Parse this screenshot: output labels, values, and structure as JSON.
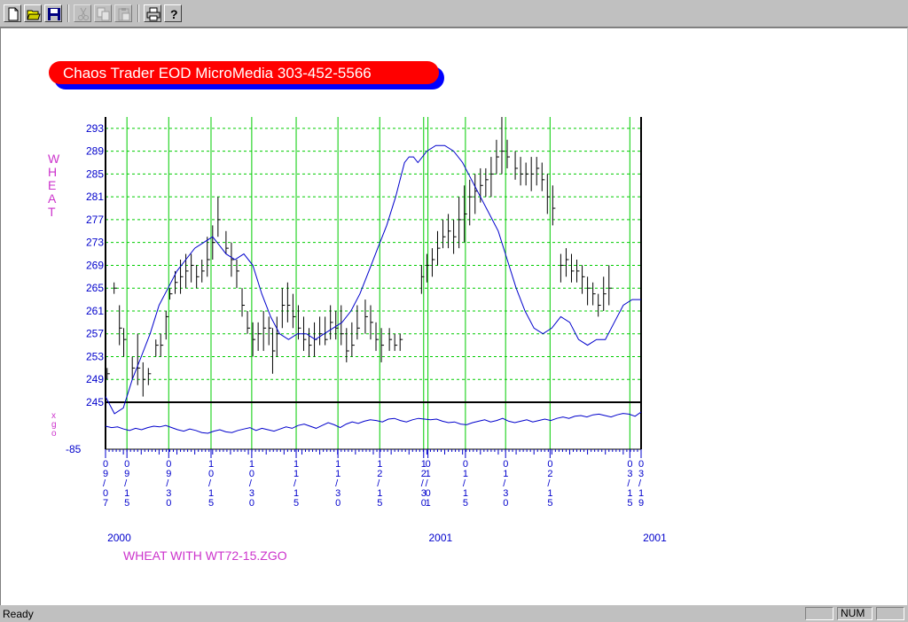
{
  "toolbar": {
    "buttons": [
      {
        "name": "new-button",
        "icon": "new-document-icon",
        "enabled": true
      },
      {
        "name": "open-button",
        "icon": "open-folder-icon",
        "enabled": true
      },
      {
        "name": "save-button",
        "icon": "floppy-disk-icon",
        "enabled": true
      },
      {
        "name": "cut-button",
        "icon": "scissors-icon",
        "enabled": false
      },
      {
        "name": "copy-button",
        "icon": "copy-icon",
        "enabled": false
      },
      {
        "name": "paste-button",
        "icon": "clipboard-icon",
        "enabled": false
      },
      {
        "name": "print-button",
        "icon": "printer-icon",
        "enabled": true
      },
      {
        "name": "help-button",
        "icon": "help-question-icon",
        "enabled": true
      }
    ]
  },
  "banner": {
    "text": "Chaos Trader EOD MicroMedia 303-452-5566",
    "fill": "#ff0000",
    "shadow": "#0000ff"
  },
  "status": {
    "text": "Ready",
    "num": "NUM"
  },
  "chart_data": [
    {
      "type": "ohlc",
      "ylabel": "WHEAT",
      "ylim": [
        245,
        295
      ],
      "yticks": [
        245,
        249,
        253,
        257,
        261,
        265,
        269,
        273,
        277,
        281,
        285,
        289,
        293
      ],
      "xticks": [
        {
          "label": "09/07",
          "pos": 0.0
        },
        {
          "label": "09/15",
          "pos": 0.04
        },
        {
          "label": "09/30",
          "pos": 0.118
        },
        {
          "label": "10/15",
          "pos": 0.197
        },
        {
          "label": "10/30",
          "pos": 0.273
        },
        {
          "label": "11/15",
          "pos": 0.356
        },
        {
          "label": "11/30",
          "pos": 0.434
        },
        {
          "label": "12/15",
          "pos": 0.512
        },
        {
          "label": "12/30",
          "pos": 0.594
        },
        {
          "label": "01/01",
          "pos": 0.602
        },
        {
          "label": "01/15",
          "pos": 0.672
        },
        {
          "label": "01/30",
          "pos": 0.747
        },
        {
          "label": "02/15",
          "pos": 0.83
        },
        {
          "label": "03/15",
          "pos": 0.979
        },
        {
          "label": "03/19",
          "pos": 1.0
        }
      ],
      "year_labels": [
        {
          "label": "2000",
          "pos": 0.02
        },
        {
          "label": "2001",
          "pos": 0.62
        },
        {
          "label": "2001",
          "pos": 1.02
        }
      ],
      "footer": "WHEAT WITH WT72-15.ZGO",
      "grid": true,
      "bar_color": "#000000",
      "line_color": "#0000cc",
      "grid_vertical_color": "#00cc00",
      "grid_horizontal_color": "#00cc00",
      "bars": [
        [
          0.003,
          251,
          249,
          250
        ],
        [
          0.016,
          266,
          264,
          265
        ],
        [
          0.026,
          262,
          255,
          258
        ],
        [
          0.034,
          258,
          253,
          256
        ],
        [
          0.05,
          253,
          249,
          251
        ],
        [
          0.06,
          257,
          248,
          251
        ],
        [
          0.07,
          252,
          246,
          249
        ],
        [
          0.08,
          251,
          248,
          250
        ],
        [
          0.094,
          256,
          253,
          255
        ],
        [
          0.103,
          257,
          253,
          255
        ],
        [
          0.113,
          261,
          256,
          260
        ],
        [
          0.12,
          265,
          263,
          264
        ],
        [
          0.13,
          268,
          264,
          266
        ],
        [
          0.14,
          270,
          264,
          267
        ],
        [
          0.15,
          271,
          265,
          268
        ],
        [
          0.16,
          271,
          266,
          269
        ],
        [
          0.17,
          269,
          265,
          267
        ],
        [
          0.18,
          270,
          266,
          268
        ],
        [
          0.19,
          274,
          267,
          270
        ],
        [
          0.2,
          276,
          270,
          273
        ],
        [
          0.21,
          281,
          274,
          277
        ],
        [
          0.225,
          275,
          271,
          272
        ],
        [
          0.235,
          273,
          267,
          270
        ],
        [
          0.245,
          270,
          265,
          268
        ],
        [
          0.255,
          265,
          260,
          262
        ],
        [
          0.265,
          261,
          257,
          258
        ],
        [
          0.275,
          259,
          253,
          256
        ],
        [
          0.285,
          259,
          254,
          257
        ],
        [
          0.295,
          261,
          254,
          258
        ],
        [
          0.305,
          260,
          255,
          258
        ],
        [
          0.312,
          258,
          250,
          254
        ],
        [
          0.32,
          260,
          253,
          257
        ],
        [
          0.33,
          265,
          258,
          262
        ],
        [
          0.34,
          266,
          259,
          262
        ],
        [
          0.35,
          264,
          258,
          260
        ],
        [
          0.36,
          262,
          256,
          258
        ],
        [
          0.37,
          260,
          254,
          256
        ],
        [
          0.38,
          258,
          253,
          255
        ],
        [
          0.39,
          259,
          253,
          256
        ],
        [
          0.4,
          260,
          255,
          257
        ],
        [
          0.41,
          260,
          255,
          256
        ],
        [
          0.42,
          262,
          256,
          259
        ],
        [
          0.43,
          261,
          256,
          258
        ],
        [
          0.44,
          262,
          255,
          257
        ],
        [
          0.45,
          258,
          252,
          254
        ],
        [
          0.46,
          259,
          253,
          255
        ],
        [
          0.47,
          262,
          256,
          258
        ],
        [
          0.485,
          263,
          257,
          260
        ],
        [
          0.495,
          262,
          256,
          259
        ],
        [
          0.505,
          259,
          254,
          256
        ],
        [
          0.515,
          258,
          252,
          255
        ],
        [
          0.53,
          258,
          254,
          256
        ],
        [
          0.54,
          257,
          254,
          255
        ],
        [
          0.55,
          257,
          254,
          256
        ],
        [
          0.59,
          269,
          264,
          267
        ],
        [
          0.6,
          271,
          266,
          269
        ],
        [
          0.61,
          272,
          267,
          270
        ],
        [
          0.62,
          275,
          269,
          272
        ],
        [
          0.63,
          277,
          272,
          274
        ],
        [
          0.64,
          278,
          272,
          275
        ],
        [
          0.65,
          277,
          271,
          274
        ],
        [
          0.66,
          281,
          272,
          277
        ],
        [
          0.67,
          283,
          273,
          278
        ],
        [
          0.68,
          284,
          276,
          281
        ],
        [
          0.69,
          285,
          278,
          282
        ],
        [
          0.7,
          286,
          280,
          283
        ],
        [
          0.71,
          286,
          281,
          284
        ],
        [
          0.72,
          288,
          281,
          285
        ],
        [
          0.73,
          291,
          285,
          288
        ],
        [
          0.74,
          295,
          285,
          289
        ],
        [
          0.75,
          291,
          286,
          288
        ],
        [
          0.765,
          289,
          284,
          286
        ],
        [
          0.775,
          288,
          283,
          285
        ],
        [
          0.785,
          287,
          283,
          285
        ],
        [
          0.795,
          288,
          282,
          285
        ],
        [
          0.805,
          288,
          283,
          286
        ],
        [
          0.815,
          287,
          282,
          284
        ],
        [
          0.825,
          285,
          278,
          281
        ],
        [
          0.835,
          283,
          276,
          279
        ],
        [
          0.85,
          271,
          266,
          269
        ],
        [
          0.86,
          272,
          267,
          270
        ],
        [
          0.87,
          271,
          266,
          268
        ],
        [
          0.88,
          270,
          266,
          268
        ],
        [
          0.89,
          269,
          264,
          267
        ],
        [
          0.9,
          267,
          262,
          265
        ],
        [
          0.91,
          266,
          262,
          264
        ],
        [
          0.92,
          264,
          260,
          262
        ],
        [
          0.93,
          267,
          261,
          264
        ],
        [
          0.94,
          269,
          262,
          265
        ]
      ],
      "ma_line": [
        [
          0,
          246
        ],
        [
          0.02,
          243
        ],
        [
          0.04,
          244
        ],
        [
          0.06,
          249
        ],
        [
          0.08,
          253
        ],
        [
          0.1,
          257
        ],
        [
          0.12,
          262
        ],
        [
          0.14,
          265
        ],
        [
          0.16,
          268
        ],
        [
          0.18,
          270
        ],
        [
          0.2,
          272
        ],
        [
          0.22,
          273
        ],
        [
          0.24,
          274
        ],
        [
          0.26,
          272
        ],
        [
          0.27,
          271
        ],
        [
          0.29,
          270
        ],
        [
          0.31,
          271
        ],
        [
          0.33,
          269
        ],
        [
          0.35,
          264
        ],
        [
          0.37,
          260
        ],
        [
          0.39,
          257
        ],
        [
          0.41,
          256
        ],
        [
          0.43,
          257
        ],
        [
          0.45,
          257
        ],
        [
          0.47,
          256
        ],
        [
          0.49,
          257
        ],
        [
          0.51,
          258
        ],
        [
          0.53,
          259
        ],
        [
          0.55,
          261
        ],
        [
          0.57,
          264
        ],
        [
          0.59,
          268
        ],
        [
          0.61,
          272
        ],
        [
          0.63,
          276
        ],
        [
          0.65,
          281
        ],
        [
          0.66,
          284
        ],
        [
          0.67,
          287
        ],
        [
          0.68,
          288
        ],
        [
          0.69,
          288
        ],
        [
          0.7,
          287
        ],
        [
          0.72,
          289
        ],
        [
          0.74,
          290
        ],
        [
          0.76,
          290
        ],
        [
          0.78,
          289
        ],
        [
          0.8,
          287
        ],
        [
          0.82,
          284
        ],
        [
          0.84,
          281
        ],
        [
          0.86,
          278
        ],
        [
          0.88,
          275
        ],
        [
          0.9,
          270
        ],
        [
          0.92,
          265
        ],
        [
          0.94,
          261
        ],
        [
          0.96,
          258
        ],
        [
          0.98,
          257
        ],
        [
          1.0,
          258
        ],
        [
          1.02,
          260
        ],
        [
          1.04,
          259
        ],
        [
          1.06,
          256
        ],
        [
          1.08,
          255
        ],
        [
          1.1,
          256
        ],
        [
          1.12,
          256
        ],
        [
          1.14,
          259
        ],
        [
          1.16,
          262
        ],
        [
          1.18,
          263
        ],
        [
          1.2,
          263
        ]
      ]
    },
    {
      "type": "line",
      "ylabel": "xgo",
      "ymin_label": "-85",
      "values": [
        0.0,
        -0.2,
        -0.1,
        -0.4,
        -0.6,
        -0.3,
        -0.5,
        -0.2,
        0.0,
        -0.1,
        0.1,
        -0.2,
        -0.5,
        -0.7,
        -0.4,
        -0.6,
        -0.9,
        -1.0,
        -0.7,
        -0.5,
        -0.8,
        -0.9,
        -0.6,
        -0.4,
        -0.2,
        -0.6,
        -0.3,
        -0.5,
        -0.7,
        -0.4,
        -0.1,
        -0.3,
        0.1,
        0.3,
        0.0,
        -0.3,
        0.1,
        0.5,
        0.2,
        -0.2,
        0.3,
        0.6,
        0.4,
        0.7,
        0.9,
        0.8,
        0.6,
        1.0,
        1.1,
        0.8,
        0.6,
        0.9,
        1.1,
        1.0,
        0.9,
        1.0,
        0.7,
        0.5,
        0.6,
        0.3,
        0.2,
        0.5,
        0.7,
        0.9,
        0.6,
        0.8,
        1.1,
        0.7,
        0.5,
        0.7,
        0.9,
        0.6,
        0.8,
        1.0,
        0.8,
        1.1,
        1.3,
        1.1,
        1.4,
        1.5,
        1.3,
        1.6,
        1.7,
        1.5,
        1.3,
        1.6,
        1.8,
        1.7,
        1.4,
        2.0
      ]
    }
  ]
}
